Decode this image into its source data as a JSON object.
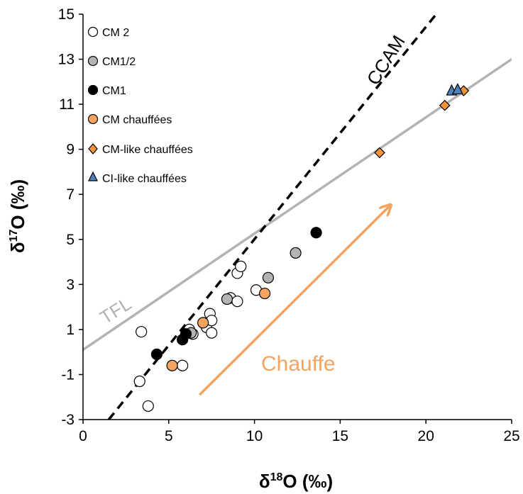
{
  "chart_data": {
    "type": "scatter",
    "xlabel": {
      "base": "δ",
      "sup": "18",
      "rest": "O (‰)"
    },
    "ylabel": {
      "base": "δ",
      "sup": "17",
      "rest": "O (‰)"
    },
    "xlim": [
      0,
      25
    ],
    "ylim": [
      -3,
      15
    ],
    "xticks": [
      0,
      5,
      10,
      15,
      20,
      25
    ],
    "yticks": [
      -3,
      -1,
      1,
      3,
      5,
      7,
      9,
      11,
      13,
      15
    ],
    "grid": false,
    "legend_position": "top-left",
    "series": [
      {
        "name": "CM 2",
        "marker": "circle",
        "fill": "#ffffff",
        "stroke": "#000000",
        "points": [
          [
            3.4,
            0.9
          ],
          [
            3.3,
            -1.3
          ],
          [
            3.8,
            -2.4
          ],
          [
            5.8,
            -0.6
          ],
          [
            6.2,
            1.0
          ],
          [
            6.4,
            0.8
          ],
          [
            7.2,
            1.1
          ],
          [
            7.4,
            1.7
          ],
          [
            7.5,
            1.4
          ],
          [
            7.5,
            0.85
          ],
          [
            8.6,
            2.4
          ],
          [
            9.0,
            2.25
          ],
          [
            9.0,
            3.5
          ],
          [
            9.2,
            3.8
          ],
          [
            10.1,
            2.75
          ]
        ]
      },
      {
        "name": "CM1/2",
        "marker": "circle",
        "fill": "#b3b3b3",
        "stroke": "#000000",
        "points": [
          [
            6.3,
            0.85
          ],
          [
            8.4,
            2.35
          ],
          [
            10.8,
            3.3
          ],
          [
            12.4,
            4.4
          ]
        ]
      },
      {
        "name": "CM1",
        "marker": "circle",
        "fill": "#000000",
        "stroke": "#000000",
        "points": [
          [
            4.3,
            -0.1
          ],
          [
            5.8,
            0.55
          ],
          [
            6.0,
            0.8
          ],
          [
            13.6,
            5.3
          ]
        ]
      },
      {
        "name": "CM chauffées",
        "marker": "circle",
        "fill": "#f4a460",
        "stroke": "#000000",
        "points": [
          [
            5.2,
            -0.6
          ],
          [
            7.0,
            1.3
          ],
          [
            10.6,
            2.6
          ]
        ]
      },
      {
        "name": "CM-like chauffées",
        "marker": "diamond",
        "fill": "#f0943c",
        "stroke": "#000000",
        "points": [
          [
            17.3,
            8.85
          ],
          [
            21.1,
            10.95
          ],
          [
            22.2,
            11.6
          ]
        ]
      },
      {
        "name": "CI-like chauffées",
        "marker": "triangle",
        "fill": "#4f81bd",
        "stroke": "#000000",
        "points": [
          [
            21.5,
            11.6
          ],
          [
            21.85,
            11.65
          ]
        ]
      }
    ],
    "lines": [
      {
        "name": "TFL",
        "style": "solid",
        "color": "#b3b3b3",
        "from": [
          0,
          0.1
        ],
        "to": [
          25,
          13.0
        ]
      },
      {
        "name": "CCAM",
        "style": "dashed",
        "color": "#000000",
        "from": [
          1.5,
          -3.0
        ],
        "to": [
          20.6,
          15.0
        ]
      }
    ],
    "annotations": [
      {
        "text": "TFL",
        "color": "#b3b3b3"
      },
      {
        "text": "CCAM",
        "color": "#000000"
      },
      {
        "text": "Chauffe",
        "color": "#f4a460"
      }
    ],
    "arrow": {
      "color": "#f4a460",
      "from": [
        6.8,
        -1.9
      ],
      "to": [
        17.9,
        6.5
      ]
    }
  }
}
